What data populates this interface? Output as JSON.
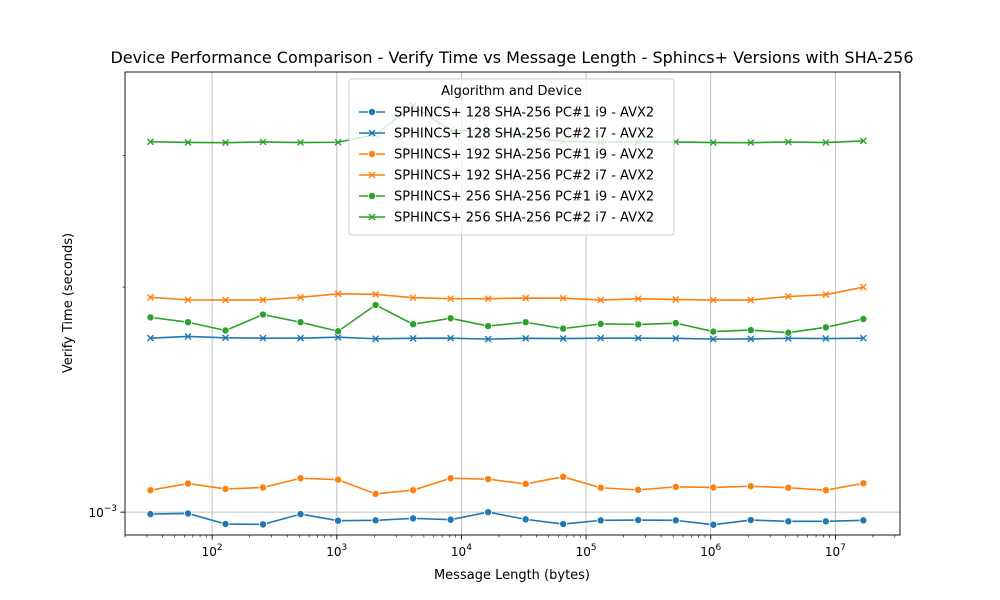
{
  "chart_data": {
    "type": "line",
    "title": "Device Performance Comparison - Verify Time vs Message Length - Sphincs+ Versions with SHA-256",
    "xlabel": "Message Length (bytes)",
    "ylabel": "Verify Time (seconds)",
    "xscale": "log",
    "yscale": "log",
    "xlim": [
      20,
      33000000
    ],
    "ylim": [
      0.000932,
      0.00388
    ],
    "grid": true,
    "x_ticks": [
      {
        "value": 100,
        "base": "10",
        "exp": "2"
      },
      {
        "value": 1000,
        "base": "10",
        "exp": "3"
      },
      {
        "value": 10000,
        "base": "10",
        "exp": "4"
      },
      {
        "value": 100000,
        "base": "10",
        "exp": "5"
      },
      {
        "value": 1000000,
        "base": "10",
        "exp": "6"
      },
      {
        "value": 10000000,
        "base": "10",
        "exp": "7"
      }
    ],
    "y_ticks": [
      {
        "value": 0.001,
        "base": "10",
        "exp": "−3"
      }
    ],
    "legend": {
      "title": "Algorithm and Device",
      "position": "top-center"
    },
    "x": [
      32,
      64,
      128,
      256,
      512,
      1024,
      2048,
      4096,
      8192,
      16384,
      32768,
      65536,
      131072,
      262144,
      524288,
      1048576,
      2097152,
      4194304,
      8388608,
      16777216
    ],
    "series": [
      {
        "name": "SPHINCS+ 128 SHA-256 PC#1 i9 - AVX2",
        "color": "#1f77b4",
        "marker": "circle",
        "values": [
          0.000994,
          0.000996,
          0.000964,
          0.000963,
          0.000994,
          0.000974,
          0.000975,
          0.000981,
          0.000977,
          0.001,
          0.000978,
          0.000964,
          0.000975,
          0.000976,
          0.000975,
          0.000962,
          0.000976,
          0.000972,
          0.000972,
          0.000975
        ]
      },
      {
        "name": "SPHINCS+ 128 SHA-256 PC#2 i7 - AVX2",
        "color": "#1f77b4",
        "marker": "x",
        "values": [
          0.001709,
          0.001718,
          0.001711,
          0.001709,
          0.001709,
          0.001714,
          0.001706,
          0.001708,
          0.001709,
          0.001704,
          0.001708,
          0.001707,
          0.001709,
          0.001709,
          0.001708,
          0.001704,
          0.001705,
          0.001708,
          0.001707,
          0.001709
        ]
      },
      {
        "name": "SPHINCS+ 192 SHA-256 PC#1 i9 - AVX2",
        "color": "#ff7f0e",
        "marker": "circle",
        "values": [
          0.00107,
          0.001092,
          0.001074,
          0.001079,
          0.00111,
          0.001105,
          0.001058,
          0.00107,
          0.00111,
          0.001107,
          0.001091,
          0.001115,
          0.001078,
          0.001071,
          0.001081,
          0.001079,
          0.001083,
          0.001078,
          0.00107,
          0.001093
        ]
      },
      {
        "name": "SPHINCS+ 192 SHA-256 PC#2 i7 - AVX2",
        "color": "#ff7f0e",
        "marker": "x",
        "values": [
          0.001938,
          0.001923,
          0.001922,
          0.001923,
          0.001938,
          0.001959,
          0.001956,
          0.001936,
          0.00193,
          0.00193,
          0.001934,
          0.001933,
          0.001922,
          0.00193,
          0.001925,
          0.001922,
          0.001922,
          0.001943,
          0.001954,
          0.002
        ]
      },
      {
        "name": "SPHINCS+ 256 SHA-256 PC#1 i9 - AVX2",
        "color": "#2ca02c",
        "marker": "circle",
        "values": [
          0.001822,
          0.001795,
          0.00175,
          0.001838,
          0.001795,
          0.001746,
          0.001893,
          0.001784,
          0.001817,
          0.001774,
          0.001795,
          0.00176,
          0.001786,
          0.001783,
          0.00179,
          0.001744,
          0.001752,
          0.001738,
          0.001767,
          0.001813
        ]
      },
      {
        "name": "SPHINCS+ 256 SHA-256 PC#2 i7 - AVX2",
        "color": "#2ca02c",
        "marker": "x",
        "values": [
          0.00313,
          0.003123,
          0.003121,
          0.003128,
          0.003122,
          0.003125,
          0.0032,
          0.003497,
          0.003241,
          0.003239,
          0.003172,
          0.003133,
          0.003128,
          0.00313,
          0.003128,
          0.003122,
          0.003121,
          0.003128,
          0.003122,
          0.003138
        ]
      }
    ]
  }
}
